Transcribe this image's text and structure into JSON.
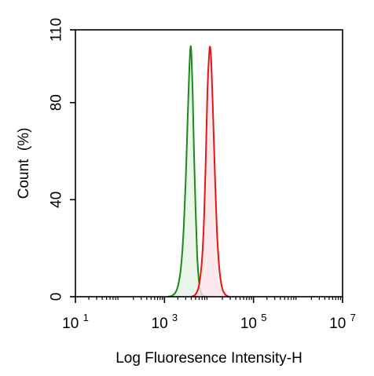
{
  "chart_data": {
    "type": "area",
    "title": "",
    "xlabel": "Log Fluoresence Intensity-H",
    "ylabel": "Count  (%)",
    "x_scale": "log",
    "xlim": [
      10,
      10000000
    ],
    "ylim": [
      0,
      110
    ],
    "x_ticks": [
      {
        "value": 10,
        "base": "10",
        "exp": "1"
      },
      {
        "value": 1000,
        "base": "10",
        "exp": "3"
      },
      {
        "value": 100000,
        "base": "10",
        "exp": "5"
      },
      {
        "value": 10000000,
        "base": "10",
        "exp": "7"
      }
    ],
    "y_ticks": [
      0,
      40,
      80,
      110
    ],
    "grid": false,
    "legend": "none",
    "series": [
      {
        "color": "#1a8a1a",
        "fill": "#e4f4e4",
        "points": [
          [
            1200,
            0
          ],
          [
            1500,
            0.5
          ],
          [
            1800,
            2
          ],
          [
            2100,
            6
          ],
          [
            2400,
            14
          ],
          [
            2700,
            28
          ],
          [
            3000,
            48
          ],
          [
            3300,
            72
          ],
          [
            3600,
            93
          ],
          [
            3850,
            103
          ],
          [
            4050,
            99
          ],
          [
            4300,
            84
          ],
          [
            4600,
            60
          ],
          [
            5000,
            36
          ],
          [
            5400,
            18
          ],
          [
            5900,
            7
          ],
          [
            6500,
            2
          ],
          [
            7500,
            0.4
          ],
          [
            9000,
            0
          ]
        ]
      },
      {
        "color": "#e01818",
        "fill": "#fde4e8",
        "points": [
          [
            4000,
            0
          ],
          [
            5000,
            1
          ],
          [
            6000,
            5
          ],
          [
            7000,
            16
          ],
          [
            7800,
            34
          ],
          [
            8500,
            58
          ],
          [
            9200,
            84
          ],
          [
            10000,
            99
          ],
          [
            10600,
            103
          ],
          [
            11300,
            96
          ],
          [
            12200,
            78
          ],
          [
            13500,
            52
          ],
          [
            15000,
            28
          ],
          [
            17000,
            12
          ],
          [
            19500,
            4
          ],
          [
            23000,
            1
          ],
          [
            28000,
            0
          ]
        ]
      }
    ]
  }
}
